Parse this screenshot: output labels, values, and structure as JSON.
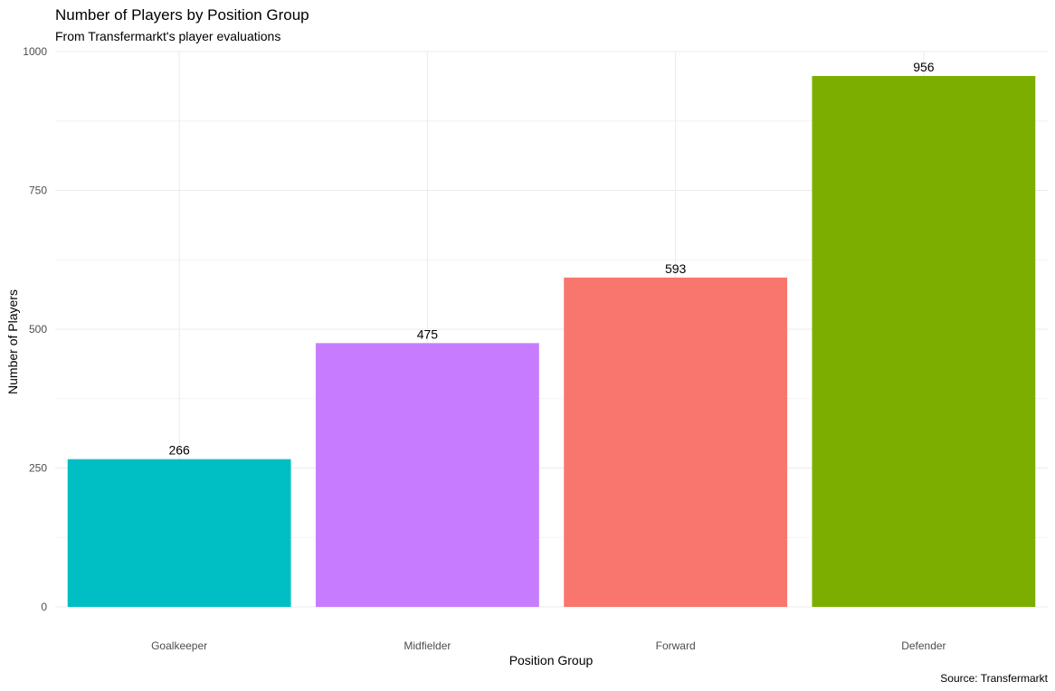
{
  "chart_data": {
    "type": "bar",
    "title": "Number of Players by Position Group",
    "subtitle": "From Transfermarkt's player evaluations",
    "xlabel": "Position Group",
    "ylabel": "Number of Players",
    "caption": "Source: Transfermarkt",
    "categories": [
      "Goalkeeper",
      "Midfielder",
      "Forward",
      "Defender"
    ],
    "values": [
      266,
      475,
      593,
      956
    ],
    "data_labels": [
      "266",
      "475",
      "593",
      "956"
    ],
    "colors": [
      "#00BFC4",
      "#C77CFF",
      "#F8766D",
      "#7CAE00"
    ],
    "ylim": [
      0,
      1000
    ],
    "yticks": [
      0,
      250,
      500,
      750,
      1000
    ],
    "ytick_labels": [
      "0",
      "250",
      "500",
      "750",
      "1000"
    ],
    "grid": true,
    "legend": "none"
  }
}
